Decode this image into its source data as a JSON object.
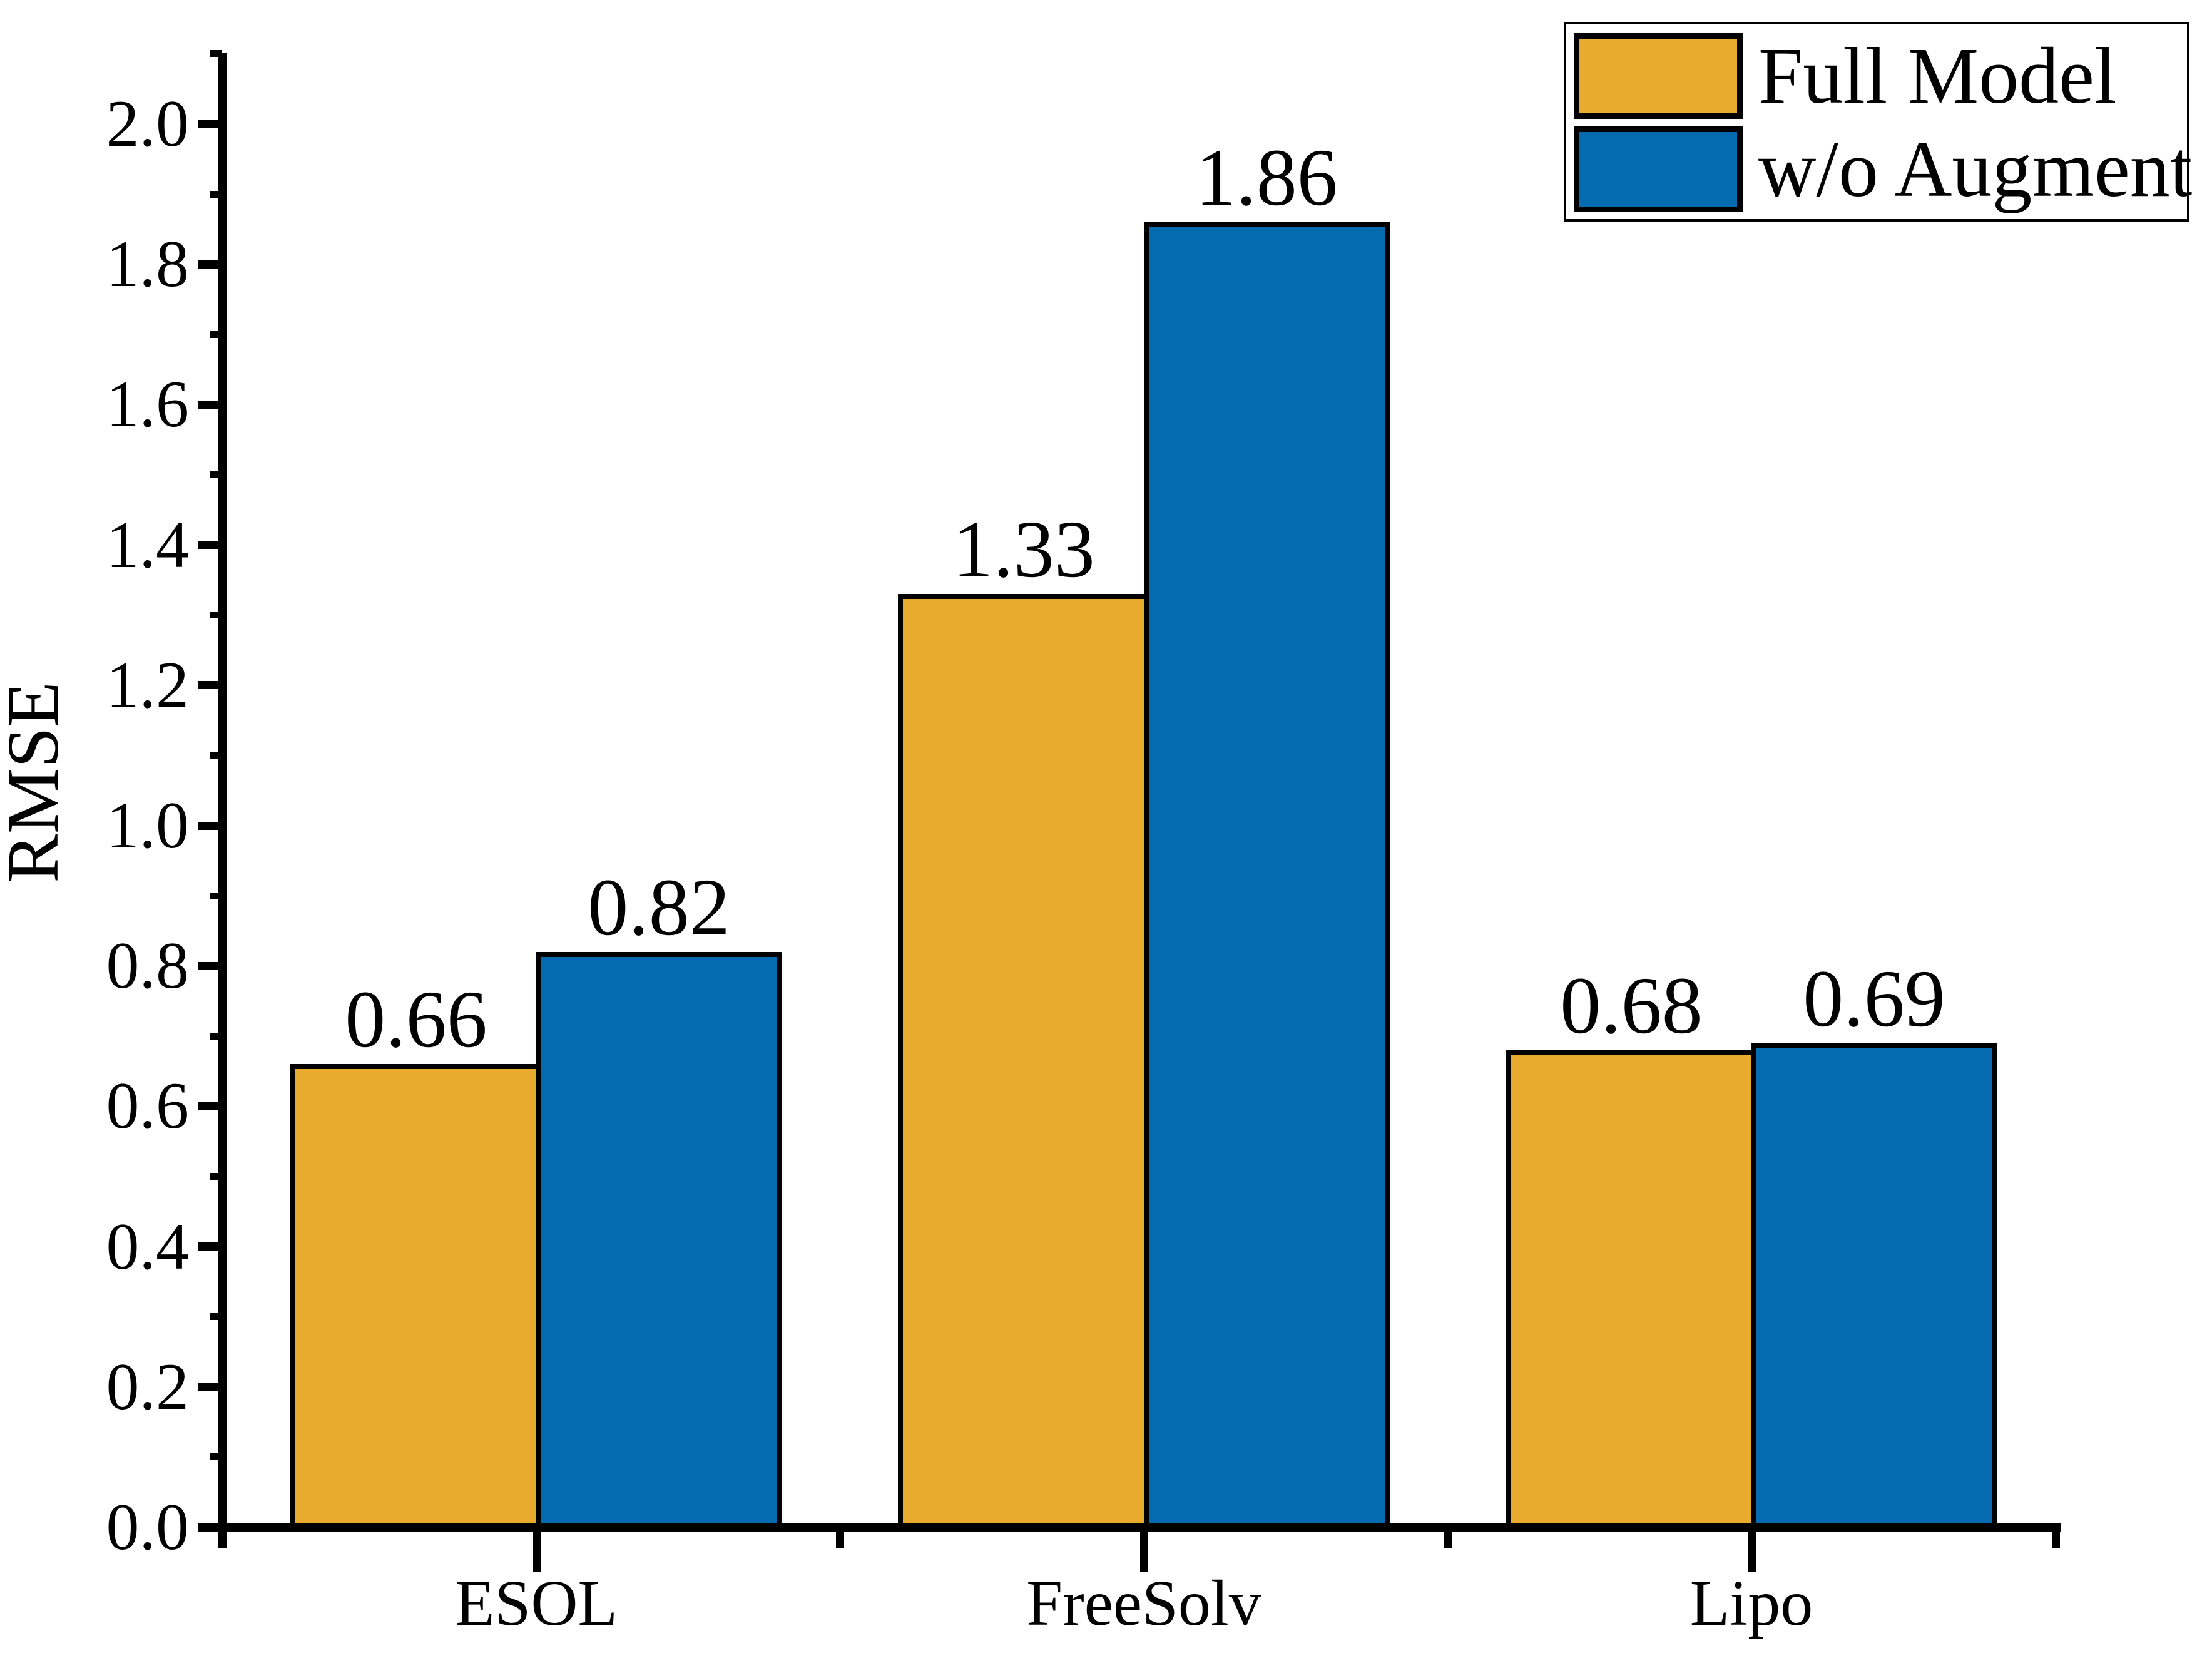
{
  "figure": {
    "background": "#FFFFFF"
  },
  "chart_data": {
    "type": "bar",
    "title": "",
    "xlabel": "",
    "ylabel": "RMSE",
    "categories": [
      "ESOL",
      "FreeSolv",
      "Lipo"
    ],
    "series": [
      {
        "name": "Full Model",
        "color": "#E8AB2D",
        "values": [
          0.66,
          1.33,
          0.68
        ],
        "value_labels": [
          "0.66",
          "1.33",
          "0.68"
        ]
      },
      {
        "name": "w/o Augment",
        "color": "#056BB0",
        "values": [
          0.82,
          1.86,
          0.69
        ],
        "value_labels": [
          "0.82",
          "1.86",
          "0.69"
        ]
      }
    ],
    "ylim": [
      0.0,
      2.1
    ],
    "ytick_labels": [
      "0.0",
      "0.2",
      "0.4",
      "0.6",
      "0.8",
      "1.0",
      "1.2",
      "1.4",
      "1.6",
      "1.8",
      "2.0"
    ],
    "ytick_major_step": 0.2,
    "ytick_minor_step": 0.1,
    "grid": false,
    "legend_position": "top-right",
    "bar_edge_color": "#000000",
    "axis_color": "#000000"
  }
}
